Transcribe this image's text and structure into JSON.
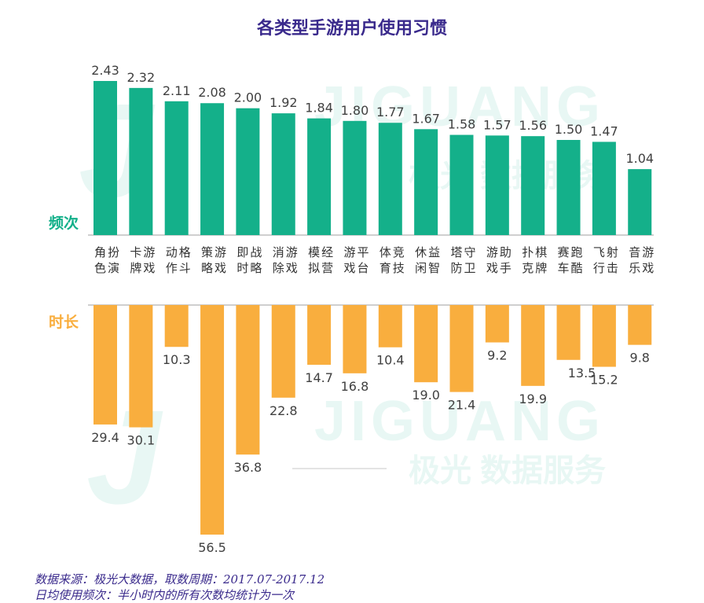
{
  "title": "各类型手游用户使用习惯",
  "watermark": {
    "word": "JIGUANG",
    "caption": "极光 数据服务"
  },
  "footnotes": {
    "source": "数据来源：极光大数据，取数周期：2017.07-2017.12",
    "note": "日均使用频次：半小时内的所有次数均统计为一次"
  },
  "chart_data": {
    "type": "bar",
    "title": "各类型手游用户使用习惯",
    "categories": [
      "角色扮演",
      "卡牌游戏",
      "动作格斗",
      "策略游戏",
      "即时战略",
      "消除游戏",
      "模拟经营",
      "游戏平台",
      "体育竞技",
      "休闲益智",
      "塔防守卫",
      "游戏助手",
      "扑克棋牌",
      "赛车跑酷",
      "飞行射击",
      "音乐游戏"
    ],
    "series": [
      {
        "name": "频次",
        "color": "#14b08a",
        "direction": "up",
        "values": [
          2.43,
          2.32,
          2.11,
          2.08,
          2.0,
          1.92,
          1.84,
          1.8,
          1.77,
          1.67,
          1.58,
          1.57,
          1.56,
          1.5,
          1.47,
          1.04
        ],
        "labels": [
          "2.43",
          "2.32",
          "2.11",
          "2.08",
          "2.00",
          "1.92",
          "1.84",
          "1.80",
          "1.77",
          "1.67",
          "1.58",
          "1.57",
          "1.56",
          "1.50",
          "1.47",
          "1.04"
        ]
      },
      {
        "name": "时长",
        "color": "#f9ae3e",
        "direction": "down",
        "values": [
          29.4,
          30.1,
          10.3,
          56.5,
          36.8,
          22.8,
          14.7,
          16.8,
          10.4,
          19.0,
          21.4,
          9.2,
          19.9,
          13.5,
          15.2,
          9.8
        ],
        "labels": [
          "29.4",
          "30.1",
          "10.3",
          "56.5",
          "36.8",
          "22.8",
          "14.7",
          "16.8",
          "10.4",
          "19.0",
          "21.4",
          "9.2",
          "19.9",
          "13.5",
          "15.2",
          "9.8"
        ]
      }
    ],
    "ylim_top": [
      0,
      2.43
    ],
    "ylim_bottom": [
      0,
      56.5
    ],
    "label_side_top": "above",
    "label_side_bottom": [
      "below",
      "below",
      "below",
      "below",
      "below",
      "below",
      "below",
      "below",
      "below",
      "below",
      "below",
      "below",
      "below",
      "right",
      "below",
      "below"
    ],
    "colors": {
      "frequency": "#14b08a",
      "duration": "#f9ae3e",
      "axis": "#bfbfbf",
      "category_text": "#333333",
      "value_text": "#404040"
    }
  }
}
